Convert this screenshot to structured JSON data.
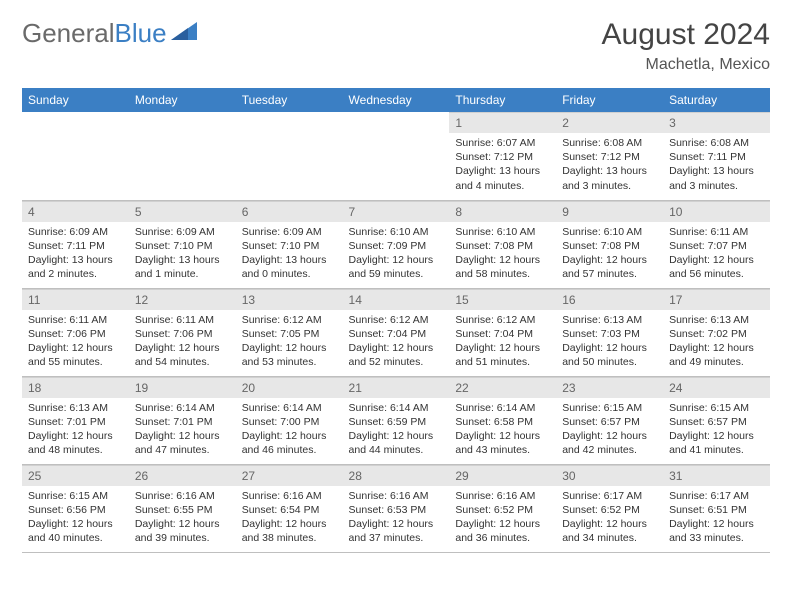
{
  "brand": {
    "part1": "General",
    "part2": "Blue"
  },
  "title": "August 2024",
  "location": "Machetla, Mexico",
  "colors": {
    "header_bg": "#3b7fc4",
    "header_text": "#ffffff",
    "daynum_bg": "#e7e7e7",
    "border": "#bfbfbf",
    "text": "#333333"
  },
  "weekdays": [
    "Sunday",
    "Monday",
    "Tuesday",
    "Wednesday",
    "Thursday",
    "Friday",
    "Saturday"
  ],
  "weeks": [
    [
      {
        "day": "",
        "sunrise": "",
        "sunset": "",
        "daylight": "",
        "empty": true
      },
      {
        "day": "",
        "sunrise": "",
        "sunset": "",
        "daylight": "",
        "empty": true
      },
      {
        "day": "",
        "sunrise": "",
        "sunset": "",
        "daylight": "",
        "empty": true
      },
      {
        "day": "",
        "sunrise": "",
        "sunset": "",
        "daylight": "",
        "empty": true
      },
      {
        "day": "1",
        "sunrise": "Sunrise: 6:07 AM",
        "sunset": "Sunset: 7:12 PM",
        "daylight": "Daylight: 13 hours and 4 minutes."
      },
      {
        "day": "2",
        "sunrise": "Sunrise: 6:08 AM",
        "sunset": "Sunset: 7:12 PM",
        "daylight": "Daylight: 13 hours and 3 minutes."
      },
      {
        "day": "3",
        "sunrise": "Sunrise: 6:08 AM",
        "sunset": "Sunset: 7:11 PM",
        "daylight": "Daylight: 13 hours and 3 minutes."
      }
    ],
    [
      {
        "day": "4",
        "sunrise": "Sunrise: 6:09 AM",
        "sunset": "Sunset: 7:11 PM",
        "daylight": "Daylight: 13 hours and 2 minutes."
      },
      {
        "day": "5",
        "sunrise": "Sunrise: 6:09 AM",
        "sunset": "Sunset: 7:10 PM",
        "daylight": "Daylight: 13 hours and 1 minute."
      },
      {
        "day": "6",
        "sunrise": "Sunrise: 6:09 AM",
        "sunset": "Sunset: 7:10 PM",
        "daylight": "Daylight: 13 hours and 0 minutes."
      },
      {
        "day": "7",
        "sunrise": "Sunrise: 6:10 AM",
        "sunset": "Sunset: 7:09 PM",
        "daylight": "Daylight: 12 hours and 59 minutes."
      },
      {
        "day": "8",
        "sunrise": "Sunrise: 6:10 AM",
        "sunset": "Sunset: 7:08 PM",
        "daylight": "Daylight: 12 hours and 58 minutes."
      },
      {
        "day": "9",
        "sunrise": "Sunrise: 6:10 AM",
        "sunset": "Sunset: 7:08 PM",
        "daylight": "Daylight: 12 hours and 57 minutes."
      },
      {
        "day": "10",
        "sunrise": "Sunrise: 6:11 AM",
        "sunset": "Sunset: 7:07 PM",
        "daylight": "Daylight: 12 hours and 56 minutes."
      }
    ],
    [
      {
        "day": "11",
        "sunrise": "Sunrise: 6:11 AM",
        "sunset": "Sunset: 7:06 PM",
        "daylight": "Daylight: 12 hours and 55 minutes."
      },
      {
        "day": "12",
        "sunrise": "Sunrise: 6:11 AM",
        "sunset": "Sunset: 7:06 PM",
        "daylight": "Daylight: 12 hours and 54 minutes."
      },
      {
        "day": "13",
        "sunrise": "Sunrise: 6:12 AM",
        "sunset": "Sunset: 7:05 PM",
        "daylight": "Daylight: 12 hours and 53 minutes."
      },
      {
        "day": "14",
        "sunrise": "Sunrise: 6:12 AM",
        "sunset": "Sunset: 7:04 PM",
        "daylight": "Daylight: 12 hours and 52 minutes."
      },
      {
        "day": "15",
        "sunrise": "Sunrise: 6:12 AM",
        "sunset": "Sunset: 7:04 PM",
        "daylight": "Daylight: 12 hours and 51 minutes."
      },
      {
        "day": "16",
        "sunrise": "Sunrise: 6:13 AM",
        "sunset": "Sunset: 7:03 PM",
        "daylight": "Daylight: 12 hours and 50 minutes."
      },
      {
        "day": "17",
        "sunrise": "Sunrise: 6:13 AM",
        "sunset": "Sunset: 7:02 PM",
        "daylight": "Daylight: 12 hours and 49 minutes."
      }
    ],
    [
      {
        "day": "18",
        "sunrise": "Sunrise: 6:13 AM",
        "sunset": "Sunset: 7:01 PM",
        "daylight": "Daylight: 12 hours and 48 minutes."
      },
      {
        "day": "19",
        "sunrise": "Sunrise: 6:14 AM",
        "sunset": "Sunset: 7:01 PM",
        "daylight": "Daylight: 12 hours and 47 minutes."
      },
      {
        "day": "20",
        "sunrise": "Sunrise: 6:14 AM",
        "sunset": "Sunset: 7:00 PM",
        "daylight": "Daylight: 12 hours and 46 minutes."
      },
      {
        "day": "21",
        "sunrise": "Sunrise: 6:14 AM",
        "sunset": "Sunset: 6:59 PM",
        "daylight": "Daylight: 12 hours and 44 minutes."
      },
      {
        "day": "22",
        "sunrise": "Sunrise: 6:14 AM",
        "sunset": "Sunset: 6:58 PM",
        "daylight": "Daylight: 12 hours and 43 minutes."
      },
      {
        "day": "23",
        "sunrise": "Sunrise: 6:15 AM",
        "sunset": "Sunset: 6:57 PM",
        "daylight": "Daylight: 12 hours and 42 minutes."
      },
      {
        "day": "24",
        "sunrise": "Sunrise: 6:15 AM",
        "sunset": "Sunset: 6:57 PM",
        "daylight": "Daylight: 12 hours and 41 minutes."
      }
    ],
    [
      {
        "day": "25",
        "sunrise": "Sunrise: 6:15 AM",
        "sunset": "Sunset: 6:56 PM",
        "daylight": "Daylight: 12 hours and 40 minutes."
      },
      {
        "day": "26",
        "sunrise": "Sunrise: 6:16 AM",
        "sunset": "Sunset: 6:55 PM",
        "daylight": "Daylight: 12 hours and 39 minutes."
      },
      {
        "day": "27",
        "sunrise": "Sunrise: 6:16 AM",
        "sunset": "Sunset: 6:54 PM",
        "daylight": "Daylight: 12 hours and 38 minutes."
      },
      {
        "day": "28",
        "sunrise": "Sunrise: 6:16 AM",
        "sunset": "Sunset: 6:53 PM",
        "daylight": "Daylight: 12 hours and 37 minutes."
      },
      {
        "day": "29",
        "sunrise": "Sunrise: 6:16 AM",
        "sunset": "Sunset: 6:52 PM",
        "daylight": "Daylight: 12 hours and 36 minutes."
      },
      {
        "day": "30",
        "sunrise": "Sunrise: 6:17 AM",
        "sunset": "Sunset: 6:52 PM",
        "daylight": "Daylight: 12 hours and 34 minutes."
      },
      {
        "day": "31",
        "sunrise": "Sunrise: 6:17 AM",
        "sunset": "Sunset: 6:51 PM",
        "daylight": "Daylight: 12 hours and 33 minutes."
      }
    ]
  ]
}
